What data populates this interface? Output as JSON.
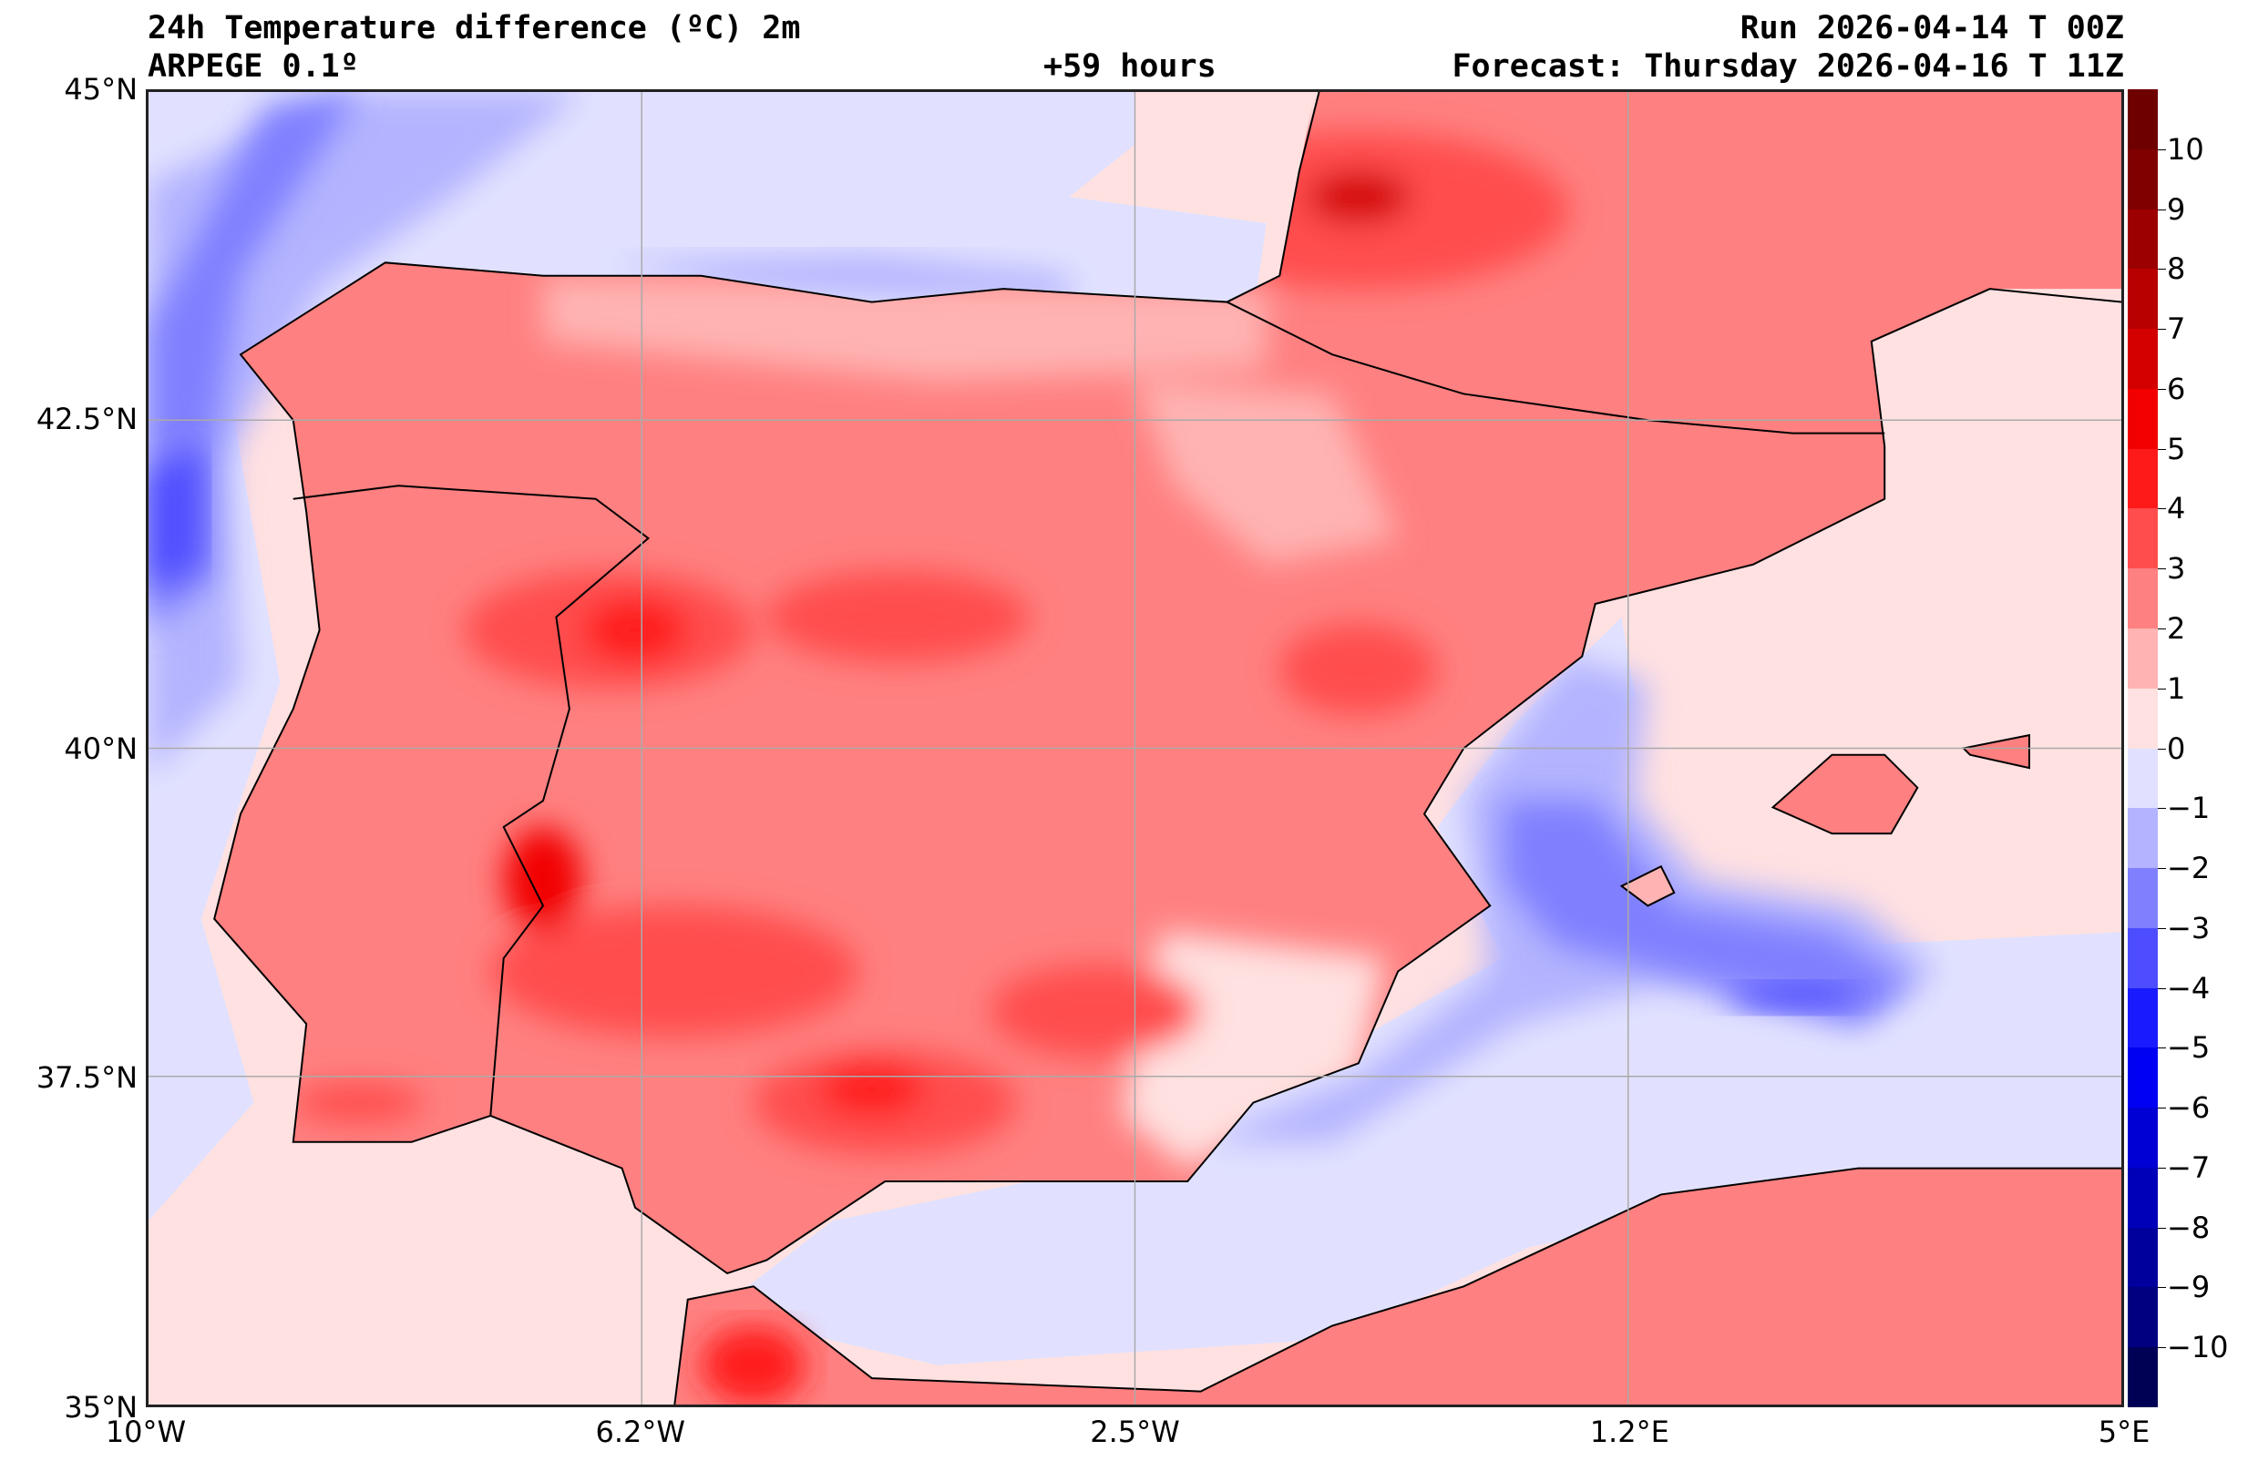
{
  "header": {
    "title": "24h Temperature difference (ºC) 2m",
    "model": "ARPEGE 0.1º",
    "lead": "+59 hours",
    "run": "Run 2026-04-14 T 00Z",
    "forecast": "Forecast: Thursday 2026-04-16 T 11Z"
  },
  "axes": {
    "lat_labels": [
      {
        "value": 45,
        "label": "45°N"
      },
      {
        "value": 42.5,
        "label": "42.5°N"
      },
      {
        "value": 40,
        "label": "40°N"
      },
      {
        "value": 37.5,
        "label": "37.5°N"
      },
      {
        "value": 35,
        "label": "35°N"
      }
    ],
    "lon_labels": [
      {
        "value": -10,
        "label": "10°W"
      },
      {
        "value": -6.25,
        "label": "6.2°W"
      },
      {
        "value": -2.5,
        "label": "2.5°W"
      },
      {
        "value": 1.25,
        "label": "1.2°E"
      },
      {
        "value": 5,
        "label": "5°E"
      }
    ],
    "extent": {
      "lon": [
        -10,
        5
      ],
      "lat": [
        35,
        45
      ]
    }
  },
  "colorbar": {
    "min": -10,
    "max": 10,
    "ticks": [
      "10",
      "9",
      "8",
      "7",
      "6",
      "5",
      "4",
      "3",
      "2",
      "1",
      "0",
      "−1",
      "−2",
      "−3",
      "−4",
      "−5",
      "−6",
      "−7",
      "−8",
      "−9",
      "−10"
    ],
    "colors_top_to_bottom": [
      "#6e0000",
      "#800000",
      "#9c0000",
      "#b80000",
      "#d40000",
      "#f20000",
      "#ff1a1a",
      "#ff4d4d",
      "#ff8080",
      "#ffb3b3",
      "#ffe1e1",
      "#e1e1ff",
      "#b3b3ff",
      "#8080ff",
      "#4d4dff",
      "#1a1aff",
      "#0000f2",
      "#0000d4",
      "#0000b8",
      "#00009c",
      "#000080",
      "#000055"
    ]
  }
}
